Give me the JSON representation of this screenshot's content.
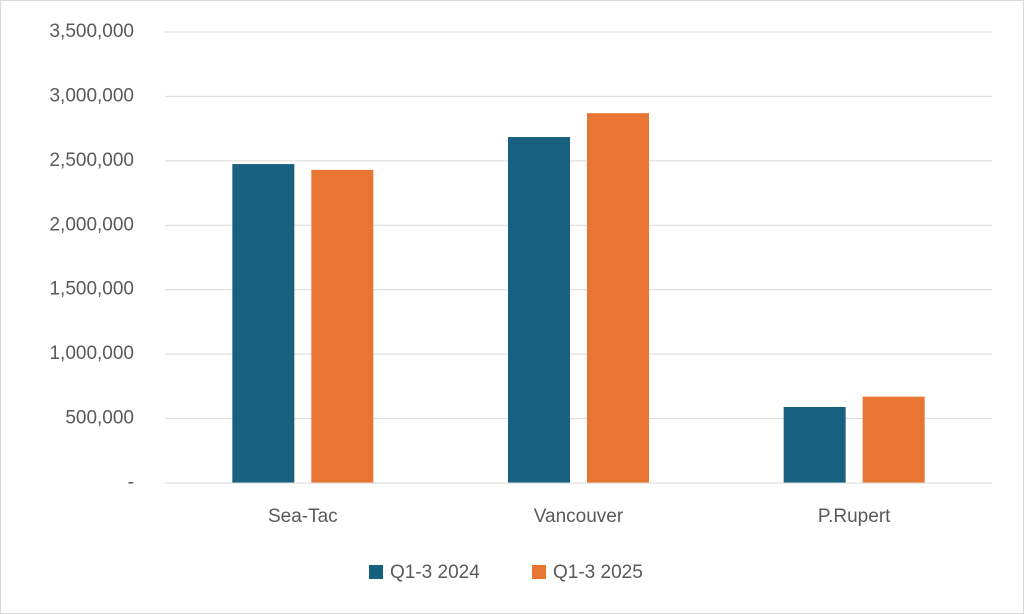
{
  "chart_data": {
    "type": "bar",
    "categories": [
      "Sea-Tac",
      "Vancouver",
      "P.Rupert"
    ],
    "series": [
      {
        "name": "Q1-3 2024",
        "color": "#17607f",
        "values": [
          2475000,
          2685000,
          590000
        ]
      },
      {
        "name": "Q1-3 2025",
        "color": "#e97532",
        "values": [
          2430000,
          2870000,
          670000
        ]
      }
    ],
    "ylim": [
      0,
      3500000
    ],
    "yticks": [
      {
        "value": 0,
        "label": "-"
      },
      {
        "value": 500000,
        "label": "500,000"
      },
      {
        "value": 1000000,
        "label": "1,000,000"
      },
      {
        "value": 1500000,
        "label": "1,500,000"
      },
      {
        "value": 2000000,
        "label": "2,000,000"
      },
      {
        "value": 2500000,
        "label": "2,500,000"
      },
      {
        "value": 3000000,
        "label": "3,000,000"
      },
      {
        "value": 3500000,
        "label": "3,500,000"
      }
    ],
    "grid": true,
    "legend": "bottom"
  }
}
